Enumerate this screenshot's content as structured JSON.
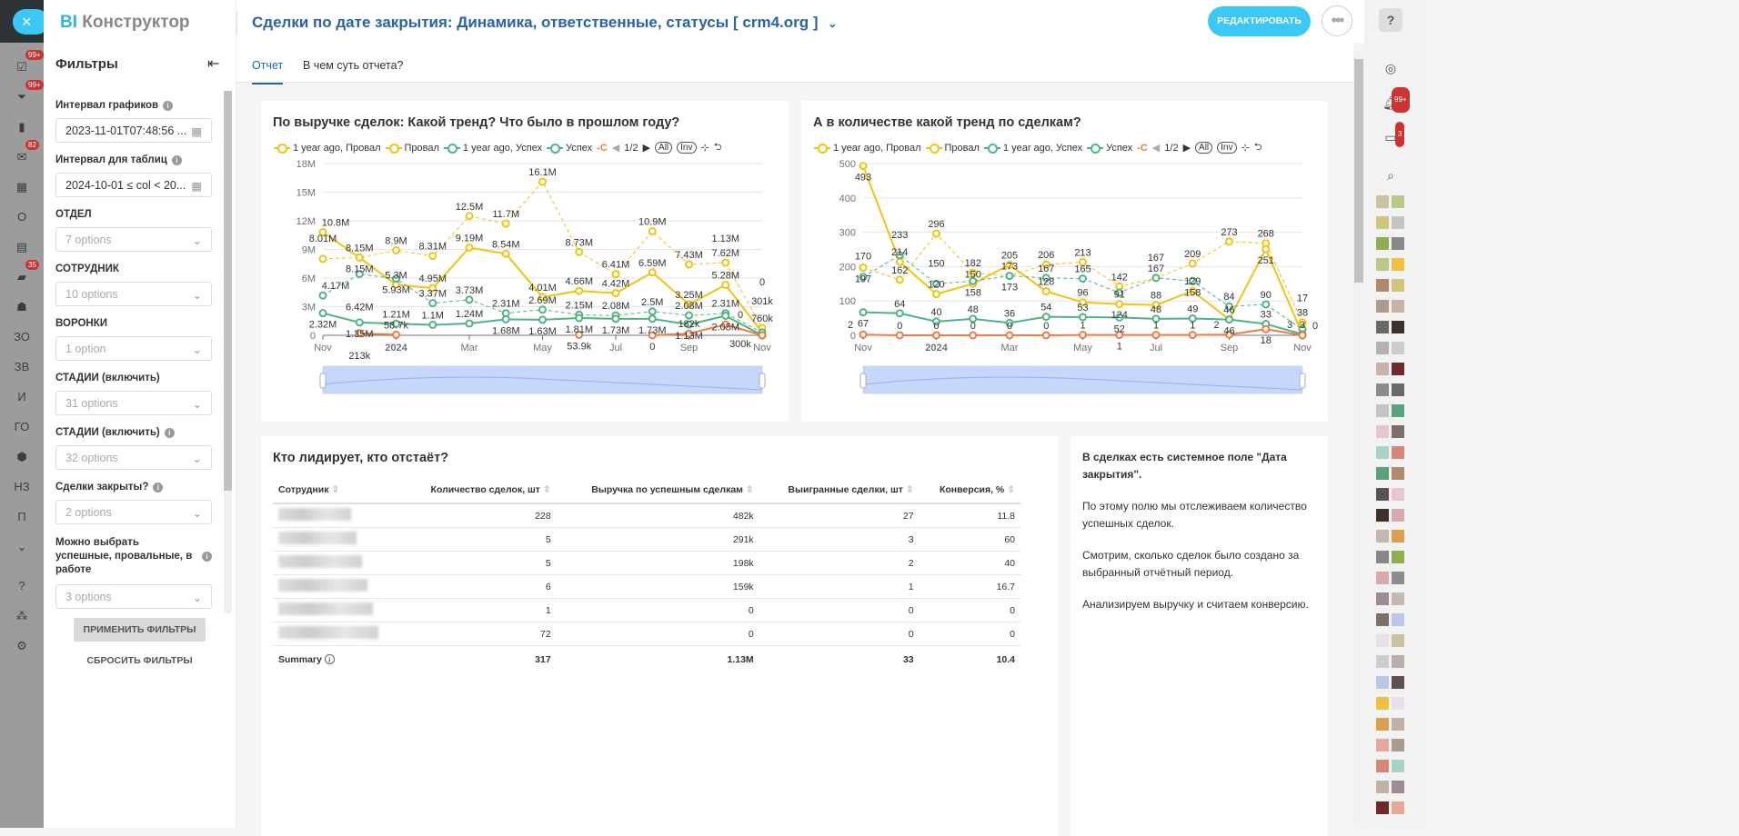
{
  "app": {
    "logo_bi": "BI",
    "logo_text": "Конструктор",
    "close": "×"
  },
  "rail": {
    "items": [
      {
        "icon": "tasks-icon",
        "glyph": "☑",
        "badge": "99+"
      },
      {
        "icon": "funnel-icon",
        "glyph": "⏷",
        "badge": "99+"
      },
      {
        "icon": "chart-icon",
        "glyph": "▮"
      },
      {
        "icon": "mail-icon",
        "glyph": "✉",
        "badge": "82"
      },
      {
        "icon": "calendar-icon",
        "glyph": "▦"
      },
      {
        "icon": "text-item",
        "glyph": "О"
      },
      {
        "icon": "contact-card-icon",
        "glyph": "▤"
      },
      {
        "icon": "chat-icon",
        "glyph": "▰",
        "badge": "35"
      },
      {
        "icon": "robot-icon",
        "glyph": "☗"
      },
      {
        "icon": "text-item",
        "glyph": "ЗО"
      },
      {
        "icon": "text-item",
        "glyph": "ЗВ"
      },
      {
        "icon": "text-item",
        "glyph": "И"
      },
      {
        "icon": "text-item",
        "glyph": "ГО"
      },
      {
        "icon": "box-icon",
        "glyph": "⬢"
      },
      {
        "icon": "text-item",
        "glyph": "НЗ"
      },
      {
        "icon": "text-item",
        "glyph": "П"
      },
      {
        "icon": "chevron-down-circle-icon",
        "glyph": "⌄"
      },
      {
        "icon": "help-icon",
        "glyph": "?"
      },
      {
        "icon": "sitemap-icon",
        "glyph": "⁂"
      },
      {
        "icon": "gear-icon",
        "glyph": "⚙"
      }
    ]
  },
  "filters": {
    "title": "Фильтры",
    "items": [
      {
        "label": "Интервал графиков",
        "info": true,
        "value": "2023-11-01T07:48:56 ...",
        "icon": "calendar"
      },
      {
        "label": "Интервал для таблиц",
        "info": true,
        "value": "2024-10-01 ≤ col < 20...",
        "icon": "calendar"
      },
      {
        "label": "ОТДЕЛ",
        "placeholder": "7 options"
      },
      {
        "label": "СОТРУДНИК",
        "placeholder": "10 options"
      },
      {
        "label": "ВОРОНКИ",
        "placeholder": "1 option"
      },
      {
        "label": "СТАДИИ (включить)",
        "placeholder": "31 options"
      },
      {
        "label": "СТАДИИ (включить)",
        "info": true,
        "placeholder": "32 options"
      },
      {
        "label": "Сделки закрыты?",
        "info": true,
        "placeholder": "2 options"
      },
      {
        "label": "Можно выбрать успешные, провальные, в работе",
        "info": true,
        "placeholder": "3 options"
      }
    ],
    "apply": "ПРИМЕНИТЬ ФИЛЬТРЫ",
    "reset": "СБРОСИТЬ ФИЛЬТРЫ"
  },
  "header": {
    "title": "Сделки по дате закрытия: Динамика, ответственные, статусы [ crm4.org ]",
    "edit": "РЕДАКТИРОВАТЬ",
    "more": "•••"
  },
  "tabs": [
    {
      "label": "Отчет",
      "active": true
    },
    {
      "label": "В чем суть отчета?"
    }
  ],
  "legend_controls": {
    "page": "1/2",
    "all": "All",
    "inv": "Inv"
  },
  "colors": {
    "fail": "#f2c313",
    "success": "#4fb384",
    "other": "#f07a45",
    "accent": "#3bc8f5",
    "title": "#2a62a8"
  },
  "chart_data": [
    {
      "type": "line",
      "title": "По выручке сделок: Какой тренд? Что было в прошлом году?",
      "x": [
        "Nov",
        "Dec",
        "2024",
        "Feb",
        "Mar",
        "Apr",
        "May",
        "Jun",
        "Jul",
        "Aug",
        "Sep",
        "Oct",
        "Nov"
      ],
      "x_tick_labels": [
        "Nov",
        "2024",
        "Mar",
        "May",
        "Jul",
        "Sep",
        "Nov"
      ],
      "y_ticks": [
        "0",
        "3M",
        "6M",
        "9M",
        "12M",
        "15M",
        "18M"
      ],
      "ylim": [
        0,
        18000000
      ],
      "grid": true,
      "legend_placement": "top",
      "series": [
        {
          "name": "1 year ago, Провал",
          "color": "#f2c313",
          "dashed": true,
          "values": [
            8010000,
            8150000,
            8900000,
            8310000,
            12500000,
            11700000,
            16100000,
            8730000,
            6410000,
            10900000,
            7430000,
            7620000,
            760000
          ]
        },
        {
          "name": "Провал",
          "color": "#f2c313",
          "dashed": false,
          "values": [
            10800000,
            8150000,
            5300000,
            4950000,
            9190000,
            8540000,
            4010000,
            4660000,
            4420000,
            6590000,
            3250000,
            5280000,
            301000
          ]
        },
        {
          "name": "1 year ago, Успех",
          "color": "#4fb384",
          "dashed": true,
          "values": [
            4170000,
            6420000,
            5930000,
            3370000,
            3730000,
            2310000,
            2690000,
            2150000,
            2080000,
            2500000,
            2080000,
            2310000,
            300000
          ]
        },
        {
          "name": "Успех",
          "color": "#4fb384",
          "dashed": false,
          "values": [
            2320000,
            1350000,
            1210000,
            1100000,
            1240000,
            1680000,
            1630000,
            1810000,
            1730000,
            1730000,
            1130000,
            2050000,
            0
          ]
        },
        {
          "name": "",
          "color": "#f07a45",
          "dashed": false,
          "values": [
            null,
            213000,
            58700,
            null,
            null,
            null,
            null,
            53900,
            null,
            0,
            182000,
            1130000,
            0
          ]
        }
      ]
    },
    {
      "type": "line",
      "title": "А в количестве какой тренд по сделкам?",
      "x": [
        "Nov",
        "Dec",
        "2024",
        "Feb",
        "Mar",
        "Apr",
        "May",
        "Jun",
        "Jul",
        "Aug",
        "Sep",
        "Oct",
        "Nov"
      ],
      "x_tick_labels": [
        "Nov",
        "2024",
        "Mar",
        "May",
        "Jul",
        "Sep",
        "Nov"
      ],
      "y_ticks": [
        "0",
        "100",
        "200",
        "300",
        "400",
        "500"
      ],
      "ylim": [
        0,
        500
      ],
      "grid": true,
      "legend_placement": "top",
      "series": [
        {
          "name": "1 year ago, Провал",
          "color": "#f2c313",
          "dashed": true,
          "values": [
            197,
            162,
            296,
            182,
            173,
            206,
            213,
            142,
            167,
            209,
            273,
            268,
            38
          ]
        },
        {
          "name": "Провал",
          "color": "#f2c313",
          "dashed": false,
          "values": [
            493,
            214,
            120,
            150,
            205,
            128,
            96,
            91,
            88,
            129,
            46,
            251,
            3
          ]
        },
        {
          "name": "1 year ago, Успех",
          "color": "#4fb384",
          "dashed": true,
          "values": [
            170,
            233,
            150,
            158,
            173,
            167,
            165,
            124,
            167,
            158,
            84,
            90,
            17
          ]
        },
        {
          "name": "Успех",
          "color": "#4fb384",
          "dashed": false,
          "values": [
            67,
            64,
            40,
            48,
            36,
            54,
            53,
            52,
            48,
            49,
            46,
            33,
            3
          ]
        },
        {
          "name": "",
          "color": "#f07a45",
          "dashed": false,
          "values": [
            2,
            0,
            0,
            0,
            0,
            0,
            1,
            1,
            1,
            1,
            2,
            18,
            0
          ]
        }
      ]
    }
  ],
  "table": {
    "title": "Кто лидирует, кто отстаёт?",
    "columns": [
      "Сотрудник",
      "Количество сделок, шт",
      "Выручка по успешным сделкам",
      "Выигранные сделки, шт",
      "Конверсия, %"
    ],
    "rows": [
      [
        "",
        "228",
        "482k",
        "27",
        "11.8"
      ],
      [
        "",
        "5",
        "291k",
        "3",
        "60"
      ],
      [
        "",
        "5",
        "198k",
        "2",
        "40"
      ],
      [
        "",
        "6",
        "159k",
        "1",
        "16.7"
      ],
      [
        "",
        "1",
        "0",
        "0",
        "0"
      ],
      [
        "",
        "72",
        "0",
        "0",
        "0"
      ]
    ],
    "summary": [
      "Summary",
      "317",
      "1.13M",
      "33",
      "10.4"
    ]
  },
  "note": [
    "В сделках есть системное поле \"Дата закрытия\".",
    "По этому полю мы отслеживаем количество успешных сделок.",
    "Смотрим, сколько сделок было создано за выбранный отчётный период.",
    "Анализируем выручку и считаем конверсию."
  ],
  "right_rail": {
    "badges": {
      "notifications": "99+",
      "chat": "3"
    }
  }
}
